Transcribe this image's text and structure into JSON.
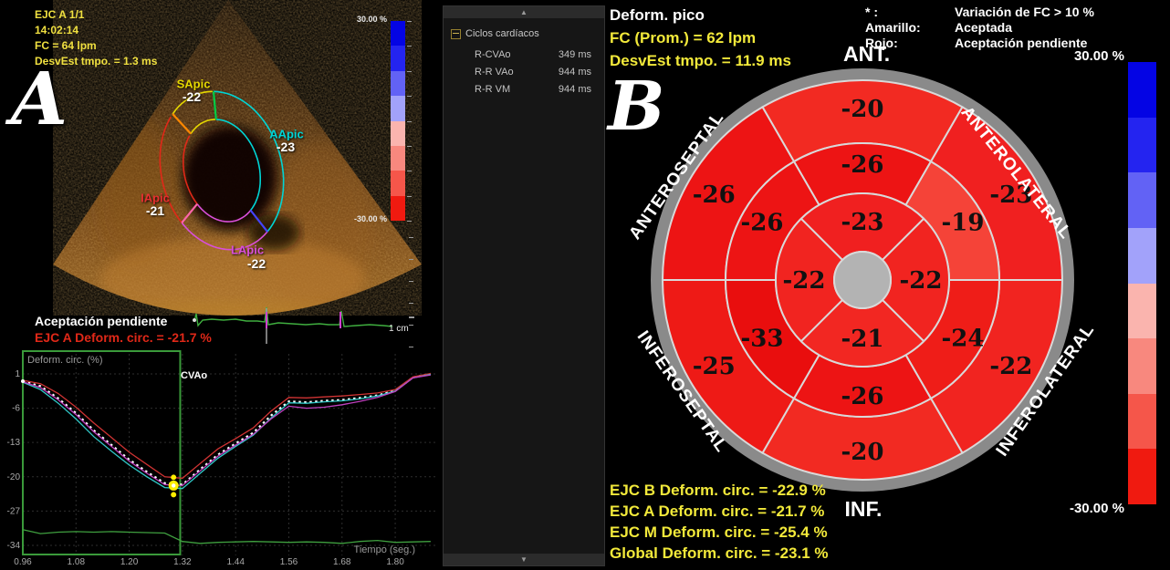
{
  "panel_a": {
    "letter": "A",
    "header": [
      "EJC A 1/1",
      "14:02:14",
      "FC = 64 lpm",
      "DesvEst tmpo. = 1.3 ms"
    ],
    "segments": [
      {
        "id": "SApic",
        "value": "-22",
        "color": "#e6d800"
      },
      {
        "id": "AApic",
        "value": "-23",
        "color": "#00d5d5"
      },
      {
        "id": "IApic",
        "value": "-21",
        "color": "#e83030"
      },
      {
        "id": "LApic",
        "value": "-22",
        "color": "#d94fd9"
      }
    ],
    "status_line1": "Aceptación pendiente",
    "status_line2": "EJC A Deform. circ. = -21.7 %",
    "scale_label": "1 cm",
    "colorbar": {
      "top": "30.00 %",
      "bottom": "-30.00 %",
      "colors": [
        "#0404e4",
        "#2424f0",
        "#6262f5",
        "#a2a2fa",
        "#fab4ae",
        "#f8887e",
        "#f5564a",
        "#f01a10"
      ]
    }
  },
  "cycles_panel": {
    "title": "Ciclos cardíacos",
    "rows": [
      {
        "label": "R-CVAo",
        "value": "349 ms"
      },
      {
        "label": "R-R VAo",
        "value": "944 ms"
      },
      {
        "label": "R-R VM",
        "value": "944 ms"
      }
    ]
  },
  "panel_b": {
    "letter": "B",
    "title": "Deform. pico",
    "fc_line": "FC (Prom.) = 62 lpm",
    "desvest_line": "DesvEst tmpo. = 11.9 ms",
    "legend": [
      {
        "label": "* :",
        "value": "Variación de FC > 10 %"
      },
      {
        "label": "Amarillo:",
        "value": "Aceptada"
      },
      {
        "label": "Rojo:",
        "value": "Aceptación pendiente"
      }
    ],
    "colorbar": {
      "top": "30.00 %",
      "bottom": "-30.00 %",
      "colors": [
        "#0404e4",
        "#2424f0",
        "#6262f5",
        "#a2a2fa",
        "#fab4ae",
        "#f8887e",
        "#f5564a",
        "#f01a10"
      ]
    },
    "axis_labels": {
      "top": "ANT.",
      "bottom": "INF."
    },
    "rotated_labels": {
      "anteroseptal": "ANTEROSEPTAL",
      "anterolateral": "ANTEROLATERAL",
      "inferoseptal": "INFEROSEPTAL",
      "inferolateral": "INFEROLATERAL"
    },
    "bullseye": {
      "rings": [
        {
          "name": "outer",
          "r0": 150,
          "r1": 219,
          "label_r": 188,
          "span": 60,
          "segments": [
            {
              "region": "anterior",
              "value": "-20",
              "angle": 90,
              "color": "#f22a22"
            },
            {
              "region": "anterolateral",
              "value": "-23",
              "angle": 30,
              "color": "#f02020"
            },
            {
              "region": "inferolateral",
              "value": "-22",
              "angle": -30,
              "color": "#f12420"
            },
            {
              "region": "inferior",
              "value": "-20",
              "angle": -90,
              "color": "#f22a22"
            },
            {
              "region": "inferoseptal",
              "value": "-25",
              "angle": -150,
              "color": "#ee1a16"
            },
            {
              "region": "anteroseptal",
              "value": "-26",
              "angle": 150,
              "color": "#ed1414"
            }
          ]
        },
        {
          "name": "mid",
          "r0": 95,
          "r1": 150,
          "label_r": 127,
          "span": 60,
          "segments": [
            {
              "region": "anterior",
              "value": "-26",
              "angle": 90,
              "color": "#ed1414"
            },
            {
              "region": "anterolateral",
              "value": "-19",
              "angle": 30,
              "color": "#f54338"
            },
            {
              "region": "inferolateral",
              "value": "-24",
              "angle": -30,
              "color": "#ef1d18"
            },
            {
              "region": "inferior",
              "value": "-26",
              "angle": -90,
              "color": "#ed1414"
            },
            {
              "region": "inferoseptal",
              "value": "-33",
              "angle": -150,
              "color": "#e90e0e"
            },
            {
              "region": "anteroseptal",
              "value": "-26",
              "angle": 150,
              "color": "#ed1414"
            }
          ]
        },
        {
          "name": "apical",
          "r0": 31,
          "r1": 95,
          "label_r": 64,
          "span": 90,
          "segments": [
            {
              "region": "apical-anterior",
              "value": "-23",
              "angle": 90,
              "color": "#f02020"
            },
            {
              "region": "apical-lateral",
              "value": "-22",
              "angle": 0,
              "color": "#f12420"
            },
            {
              "region": "apical-inferior",
              "value": "-21",
              "angle": -90,
              "color": "#f22722"
            },
            {
              "region": "apical-septal",
              "value": "-22",
              "angle": 180,
              "color": "#f12420"
            }
          ]
        }
      ]
    },
    "results": [
      "EJC B Deform. circ. = -22.9 %",
      "EJC A Deform. circ. = -21.7 %",
      "EJC M Deform. circ. = -25.4 %",
      "Global Deform. circ. = -23.1 %"
    ]
  },
  "chart_data": {
    "type": "line",
    "title": "",
    "ylabel": "Deform. circ. (%)",
    "xlabel": "Tiempo (seg.)",
    "xticks": [
      0.96,
      1.08,
      1.2,
      1.32,
      1.44,
      1.56,
      1.68,
      1.8
    ],
    "yticks": [
      1,
      -6,
      -13,
      -20,
      -27,
      -34
    ],
    "xlim": [
      0.94,
      1.9
    ],
    "ylim": [
      -36,
      3
    ],
    "grid": true,
    "event_label": "CVAo",
    "event_time": 1.31,
    "roi": [
      0.96,
      1.315
    ],
    "peak_marker": {
      "x": 1.3,
      "y": -21.8,
      "color": "#ffee00"
    },
    "x": [
      0.96,
      1.0,
      1.04,
      1.08,
      1.12,
      1.16,
      1.2,
      1.24,
      1.28,
      1.32,
      1.36,
      1.4,
      1.44,
      1.48,
      1.52,
      1.56,
      1.6,
      1.64,
      1.68,
      1.72,
      1.76,
      1.8,
      1.84,
      1.88
    ],
    "series": [
      {
        "name": "SApic (mean, dotted)",
        "color": "#ffffff",
        "style": "dotted",
        "values": [
          -0.5,
          -1.5,
          -4.0,
          -7.0,
          -10.5,
          -13.5,
          -16.5,
          -19.0,
          -21.3,
          -21.6,
          -18.5,
          -15.5,
          -13.2,
          -11.0,
          -7.5,
          -4.6,
          -4.8,
          -4.5,
          -4.3,
          -3.9,
          -3.4,
          -2.4,
          0.3,
          1.0
        ]
      },
      {
        "name": "IApic",
        "color": "#cf3333",
        "style": "solid",
        "values": [
          -0.3,
          -1.0,
          -3.0,
          -5.8,
          -9.0,
          -12.0,
          -15.0,
          -17.5,
          -20.0,
          -20.3,
          -17.3,
          -14.3,
          -12.2,
          -10.0,
          -6.6,
          -3.8,
          -3.9,
          -3.7,
          -3.5,
          -3.2,
          -2.9,
          -2.2,
          0.4,
          1.1
        ]
      },
      {
        "name": "AApic",
        "color": "#30c8c8",
        "style": "solid",
        "values": [
          -0.7,
          -2.2,
          -5.0,
          -8.2,
          -11.8,
          -14.8,
          -17.6,
          -20.0,
          -22.2,
          -22.4,
          -19.3,
          -16.2,
          -13.8,
          -11.5,
          -8.0,
          -4.9,
          -5.0,
          -4.7,
          -4.5,
          -4.1,
          -3.5,
          -2.5,
          0.2,
          0.9
        ]
      },
      {
        "name": "LApic",
        "color": "#c040c0",
        "style": "solid",
        "values": [
          -0.6,
          -1.8,
          -4.3,
          -7.3,
          -10.8,
          -13.8,
          -16.8,
          -19.3,
          -21.6,
          -21.8,
          -18.8,
          -15.8,
          -13.5,
          -11.3,
          -8.2,
          -5.6,
          -6.0,
          -5.8,
          -5.3,
          -4.6,
          -3.8,
          -2.6,
          0.2,
          0.8
        ]
      },
      {
        "name": "ECG",
        "color": "#3f9f3f",
        "style": "solid",
        "values": [
          -30.8,
          -31.6,
          -31.3,
          -31.2,
          -31.3,
          -31.2,
          -31.3,
          -31.4,
          -31.5,
          -33.2,
          -33.6,
          -33.4,
          -33.3,
          -33.2,
          -33.3,
          -33.4,
          -33.3,
          -33.4,
          -33.6,
          -33.2,
          -33.0,
          -33.4,
          -33.3,
          -33.2
        ]
      }
    ]
  }
}
